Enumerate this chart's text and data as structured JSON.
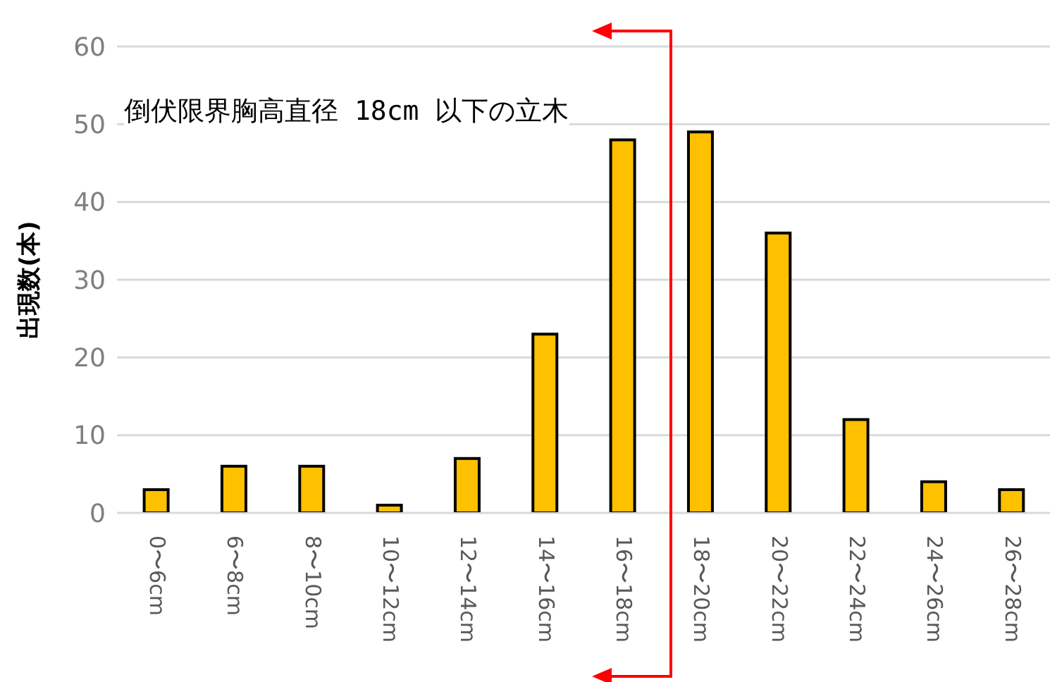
{
  "chart_data": {
    "type": "bar",
    "ylabel": "出現数(本)",
    "categories": [
      "0〜6cm",
      "6〜8cm",
      "8〜10cm",
      "10〜12cm",
      "12〜14cm",
      "14〜16cm",
      "16〜18cm",
      "18〜20cm",
      "20〜22cm",
      "22〜24cm",
      "24〜26cm",
      "26〜28cm"
    ],
    "values": [
      3,
      6,
      6,
      1,
      7,
      23,
      48,
      49,
      36,
      12,
      4,
      3
    ],
    "color": "#ffc000",
    "ylim": [
      0,
      60
    ],
    "yticks": [
      0,
      10,
      20,
      30,
      40,
      50,
      60
    ],
    "grid": "y",
    "legend": false,
    "annotations": [
      "倒伏限界胸高直径 18cm 以下の立木"
    ]
  }
}
